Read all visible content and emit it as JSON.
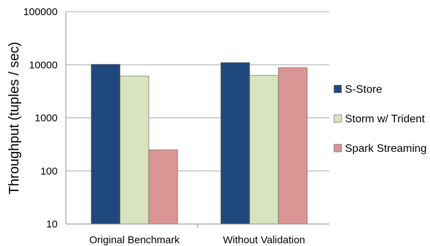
{
  "chart_data": {
    "type": "bar",
    "categories": [
      "Original Benchmark",
      "Without Validation"
    ],
    "series": [
      {
        "name": "S-Store",
        "values": [
          10200,
          11000
        ],
        "color": "#1f497d"
      },
      {
        "name": "Storm w/ Trident",
        "values": [
          6100,
          6300
        ],
        "color": "#d7e4bd"
      },
      {
        "name": "Spark Streaming",
        "values": [
          250,
          8800
        ],
        "color": "#d99694"
      }
    ],
    "ylabel": "Throughput (tuples / sec)",
    "yscale": "log",
    "ylim": [
      10,
      100000
    ],
    "yticks": [
      "100000",
      "10000",
      "1000",
      "100",
      "10"
    ],
    "grid": true,
    "legend": "right"
  }
}
